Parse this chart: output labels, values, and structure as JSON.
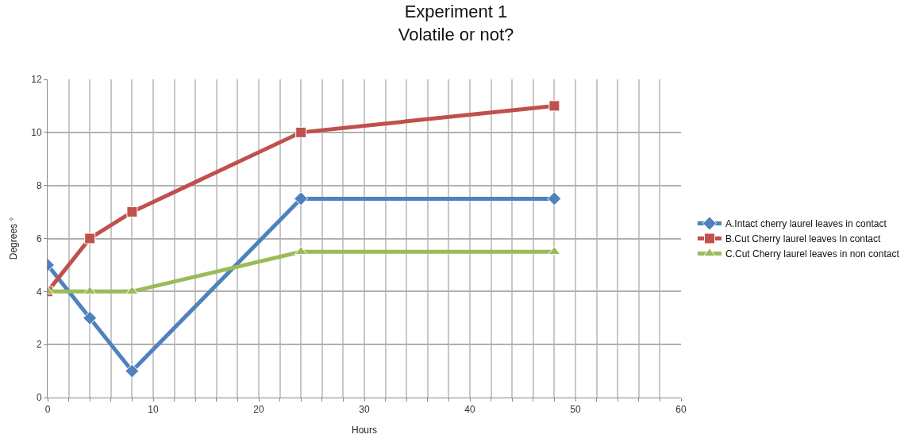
{
  "chart_data": {
    "type": "line",
    "title": "Experiment 1\nVolatile or not?",
    "xlabel": "Hours",
    "ylabel": "Degrees °",
    "x": [
      0,
      4,
      8,
      24,
      48
    ],
    "series": [
      {
        "name": "A.Intact cherry laurel leaves in contact",
        "color": "#4f81bd",
        "marker": "diamond",
        "values": [
          5,
          3,
          1,
          7.5,
          7.5
        ]
      },
      {
        "name": "B.Cut Cherry laurel leaves In contact",
        "color": "#c0504d",
        "marker": "square",
        "values": [
          4,
          6,
          7,
          10,
          11
        ]
      },
      {
        "name": "C.Cut Cherry laurel leaves in non contact",
        "color": "#9bbb59",
        "marker": "triangle",
        "values": [
          4,
          4,
          4,
          5.5,
          5.5
        ]
      }
    ],
    "xlim": [
      0,
      60
    ],
    "ylim": [
      0,
      12
    ],
    "xticks": [
      0,
      {
        "value": 2,
        "label": null
      },
      {
        "value": 4,
        "label": null
      },
      {
        "value": 6,
        "label": null
      },
      {
        "value": 8,
        "label": null
      },
      10,
      {
        "value": 12,
        "label": null
      },
      {
        "value": 14,
        "label": null
      },
      {
        "value": 16,
        "label": null
      },
      {
        "value": 18,
        "label": null
      },
      20,
      {
        "value": 22,
        "label": null
      },
      {
        "value": 24,
        "label": null
      },
      {
        "value": 26,
        "label": null
      },
      {
        "value": 28,
        "label": null
      },
      30,
      {
        "value": 32,
        "label": null
      },
      {
        "value": 34,
        "label": null
      },
      {
        "value": 36,
        "label": null
      },
      {
        "value": 38,
        "label": null
      },
      40,
      {
        "value": 42,
        "label": null
      },
      {
        "value": 44,
        "label": null
      },
      {
        "value": 46,
        "label": null
      },
      {
        "value": 48,
        "label": null
      },
      50,
      {
        "value": 52,
        "label": null
      },
      {
        "value": 54,
        "label": null
      },
      {
        "value": 56,
        "label": null
      },
      {
        "value": 58,
        "label": null
      },
      60
    ],
    "yticks": [
      0,
      2,
      4,
      6,
      8,
      10,
      12
    ],
    "grid": true,
    "legend": "right",
    "line_style": "solid"
  }
}
